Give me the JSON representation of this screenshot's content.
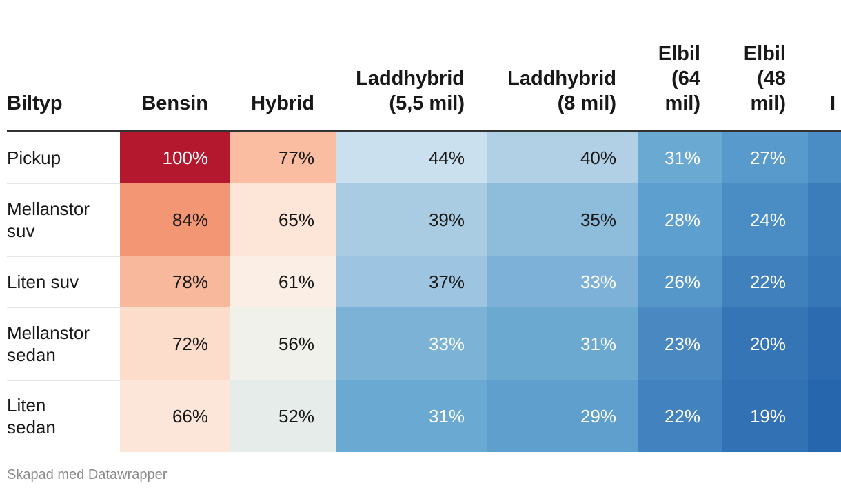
{
  "chart_data": {
    "type": "table",
    "columns": [
      "Biltyp",
      "Bensin",
      "Hybrid",
      "Laddhybrid (5,5 mil)",
      "Laddhybrid (8 mil)",
      "Elbil (64 mil)",
      "Elbil (48 mil)",
      "I"
    ],
    "header_lines": [
      [
        "Biltyp"
      ],
      [
        "Bensin"
      ],
      [
        "Hybrid"
      ],
      [
        "Laddhybrid",
        "(5,5 mil)"
      ],
      [
        "Laddhybrid",
        "(8 mil)"
      ],
      [
        "Elbil",
        "(64",
        "mil)"
      ],
      [
        "Elbil",
        "(48",
        "mil)"
      ],
      [
        "I"
      ]
    ],
    "rows": [
      {
        "label": "Pickup",
        "values": [
          "100%",
          "77%",
          "44%",
          "40%",
          "31%",
          "27%",
          ""
        ],
        "colors": [
          "#b4182e",
          "#fbbda2",
          "#cbe0ee",
          "#b2d0e5",
          "#6aaad2",
          "#579acb",
          "#4a8dc4"
        ],
        "text_colors": [
          "#ffffff",
          "#181818",
          "#181818",
          "#181818",
          "#ffffff",
          "#ffffff",
          "#ffffff"
        ]
      },
      {
        "label": "Mellanstor suv",
        "values": [
          "84%",
          "65%",
          "39%",
          "35%",
          "28%",
          "24%",
          ""
        ],
        "colors": [
          "#f39674",
          "#fde5d7",
          "#a9cce3",
          "#8ebcdb",
          "#5d9fce",
          "#4a8dc4",
          "#3b7cbb"
        ],
        "text_colors": [
          "#181818",
          "#181818",
          "#181818",
          "#181818",
          "#ffffff",
          "#ffffff",
          "#ffffff"
        ]
      },
      {
        "label": "Liten suv",
        "values": [
          "78%",
          "61%",
          "37%",
          "33%",
          "26%",
          "22%",
          ""
        ],
        "colors": [
          "#f8b89c",
          "#fbefe5",
          "#9dc4e0",
          "#7db1d7",
          "#5697c9",
          "#3f80bd",
          "#3677b7"
        ],
        "text_colors": [
          "#181818",
          "#181818",
          "#181818",
          "#ffffff",
          "#ffffff",
          "#ffffff",
          "#ffffff"
        ]
      },
      {
        "label": "Mellanstor sedan",
        "values": [
          "72%",
          "56%",
          "33%",
          "31%",
          "23%",
          "20%",
          ""
        ],
        "colors": [
          "#fcdcca",
          "#f1f1eb",
          "#7cb2d6",
          "#6ca9d1",
          "#4a88c2",
          "#3574b5",
          "#2c6bb0"
        ],
        "text_colors": [
          "#181818",
          "#181818",
          "#ffffff",
          "#ffffff",
          "#ffffff",
          "#ffffff",
          "#ffffff"
        ]
      },
      {
        "label": "Liten sedan",
        "values": [
          "66%",
          "52%",
          "31%",
          "29%",
          "22%",
          "19%",
          ""
        ],
        "colors": [
          "#fce6d9",
          "#e6ecea",
          "#6aaad2",
          "#5e9fcd",
          "#4283bf",
          "#3171b4",
          "#2666ad"
        ],
        "text_colors": [
          "#181818",
          "#181818",
          "#ffffff",
          "#ffffff",
          "#ffffff",
          "#ffffff",
          "#ffffff"
        ]
      }
    ]
  },
  "footer": {
    "credit": "Skapad med Datawrapper"
  }
}
